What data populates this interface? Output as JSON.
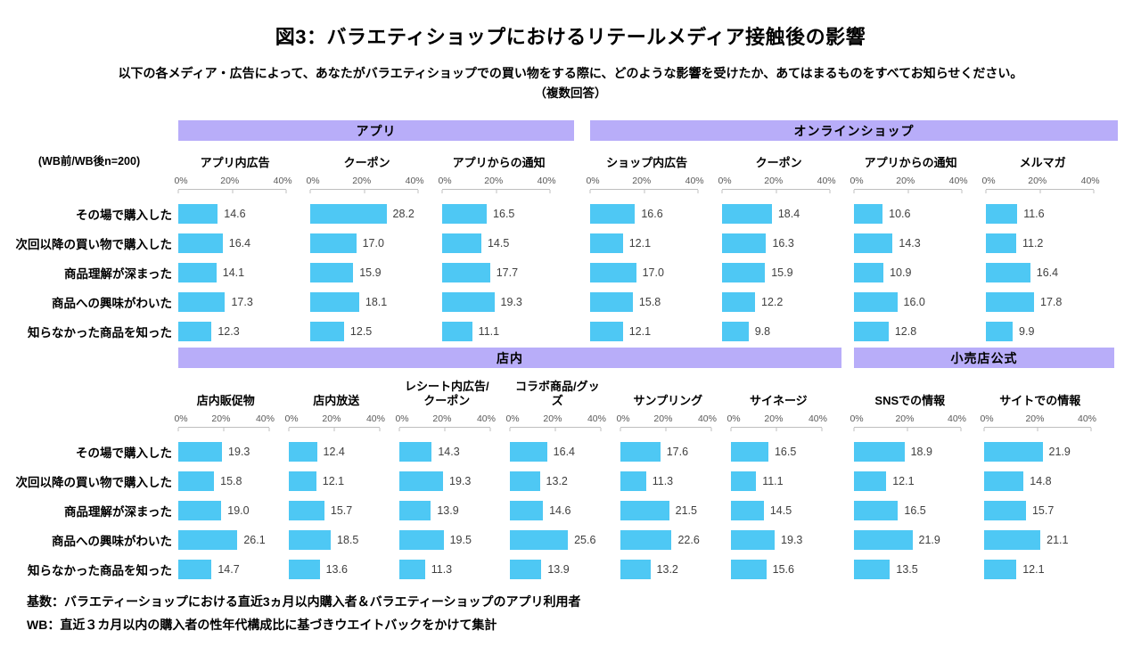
{
  "title": "図3：バラエティショップにおけるリテールメディア接触後の影響",
  "subtitle": "以下の各メディア・広告によって、あなたがバラエティショップでの買い物をする際に、どのような影響を受けたか、あてはまるものをすべてお知らせください。",
  "subtitle_note": "（複数回答）",
  "sample_note": "(WB前/WB後n=200)",
  "footnotes": [
    "基数：バラエティーショップにおける直近3ヵ月以内購入者＆バラエティーショップのアプリ利用者",
    "WB：直近３カ月以内の購入者の性年代構成比に基づきウエイトバックをかけて集計"
  ],
  "colors": {
    "bar": "#4EC8F4",
    "band": "#B8ADF9",
    "axis_line": "#BFBFBF",
    "tick_label": "#595959",
    "value_label": "#404040"
  },
  "chart_data": {
    "type": "bar",
    "orientation": "horizontal",
    "value_unit": "%",
    "xlim": [
      0,
      40
    ],
    "tick_labels": [
      "0%",
      "20%",
      "40%"
    ],
    "grid": false,
    "categories": [
      "その場で購入した",
      "次回以降の買い物で購入した",
      "商品理解が深まった",
      "商品への興味がわいた",
      "知らなかった商品を知った"
    ],
    "row_groups": [
      {
        "bands": [
          {
            "label": "アプリ",
            "span": 3
          },
          {
            "label": "オンラインショップ",
            "span": 4
          }
        ],
        "series": [
          {
            "name": "アプリ内広告",
            "values": [
              14.6,
              16.4,
              14.1,
              17.3,
              12.3
            ]
          },
          {
            "name": "クーポン",
            "values": [
              28.2,
              17.0,
              15.9,
              18.1,
              12.5
            ]
          },
          {
            "name": "アプリからの通知",
            "values": [
              16.5,
              14.5,
              17.7,
              19.3,
              11.1
            ]
          },
          {
            "name": "ショップ内広告",
            "values": [
              16.6,
              12.1,
              17.0,
              15.8,
              12.1
            ]
          },
          {
            "name": "クーポン",
            "values": [
              18.4,
              16.3,
              15.9,
              12.2,
              9.8
            ]
          },
          {
            "name": "アプリからの通知",
            "values": [
              10.6,
              14.3,
              10.9,
              16.0,
              12.8
            ]
          },
          {
            "name": "メルマガ",
            "values": [
              11.6,
              11.2,
              16.4,
              17.8,
              9.9
            ]
          }
        ]
      },
      {
        "bands": [
          {
            "label": "店内",
            "span": 6
          },
          {
            "label": "小売店公式",
            "span": 2
          }
        ],
        "series": [
          {
            "name": "店内販促物",
            "values": [
              19.3,
              15.8,
              19.0,
              26.1,
              14.7
            ]
          },
          {
            "name": "店内放送",
            "values": [
              12.4,
              12.1,
              15.7,
              18.5,
              13.6
            ]
          },
          {
            "name": "レシート内広告/クーポン",
            "values": [
              14.3,
              19.3,
              13.9,
              19.5,
              11.3
            ]
          },
          {
            "name": "コラボ商品/グッズ",
            "values": [
              16.4,
              13.2,
              14.6,
              25.6,
              13.9
            ]
          },
          {
            "name": "サンプリング",
            "values": [
              17.6,
              11.3,
              21.5,
              22.6,
              13.2
            ]
          },
          {
            "name": "サイネージ",
            "values": [
              16.5,
              11.1,
              14.5,
              19.3,
              15.6
            ]
          },
          {
            "name": "SNSでの情報",
            "values": [
              18.9,
              12.1,
              16.5,
              21.9,
              13.5
            ]
          },
          {
            "name": "サイトでの情報",
            "values": [
              21.9,
              14.8,
              15.7,
              21.1,
              12.1
            ]
          }
        ]
      }
    ]
  }
}
